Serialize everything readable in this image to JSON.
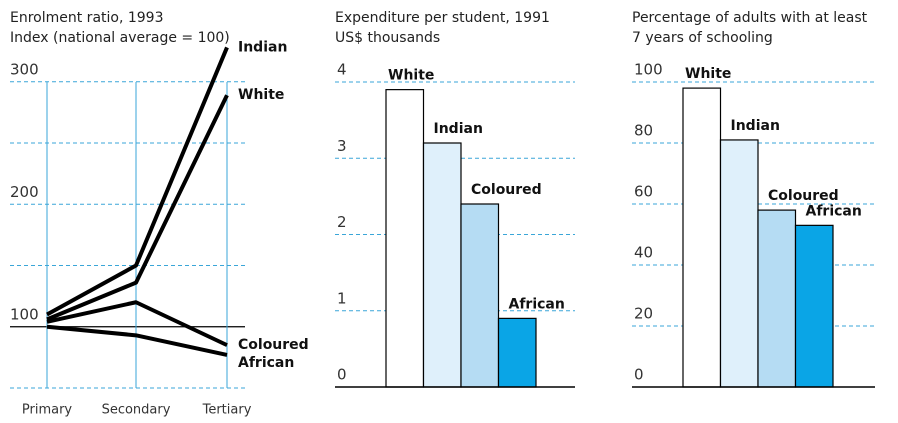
{
  "chart_data": [
    {
      "type": "line",
      "title": "Enrolment ratio, 1993",
      "subtitle": "Index (national average = 100)",
      "categories": [
        "Primary",
        "Secondary",
        "Tertiary"
      ],
      "series": [
        {
          "name": "Indian",
          "color": "#000000",
          "values": [
            110,
            150,
            328
          ]
        },
        {
          "name": "White",
          "color": "#000000",
          "values": [
            106,
            136,
            289
          ]
        },
        {
          "name": "Coloured",
          "color": "#000000",
          "values": [
            104,
            120,
            85
          ]
        },
        {
          "name": "African",
          "color": "#000000",
          "values": [
            100,
            93,
            77
          ]
        }
      ],
      "ylim": [
        50,
        330
      ],
      "yticks": [
        100,
        200,
        300
      ],
      "minor_yticks": [
        50,
        150,
        250
      ],
      "reference_line": 100,
      "grid": true
    },
    {
      "type": "bar",
      "title": "Expenditure per student, 1991",
      "subtitle": "US$ thousands",
      "categories": [
        "White",
        "Indian",
        "Coloured",
        "African"
      ],
      "values": [
        3.9,
        3.2,
        2.4,
        0.9
      ],
      "colors": [
        "#ffffff",
        "#dff0fb",
        "#b5dcf3",
        "#0aa5e6"
      ],
      "ylim": [
        0,
        4
      ],
      "yticks": [
        0,
        1,
        2,
        3,
        4
      ],
      "grid": true
    },
    {
      "type": "bar",
      "title": "Percentage of adults with at least",
      "subtitle": "7 years of schooling",
      "categories": [
        "White",
        "Indian",
        "Coloured",
        "African"
      ],
      "values": [
        98,
        81,
        58,
        53
      ],
      "colors": [
        "#ffffff",
        "#dff0fb",
        "#b5dcf3",
        "#0aa5e6"
      ],
      "ylim": [
        0,
        100
      ],
      "yticks": [
        0,
        20,
        40,
        60,
        80,
        100
      ],
      "grid": true
    }
  ]
}
